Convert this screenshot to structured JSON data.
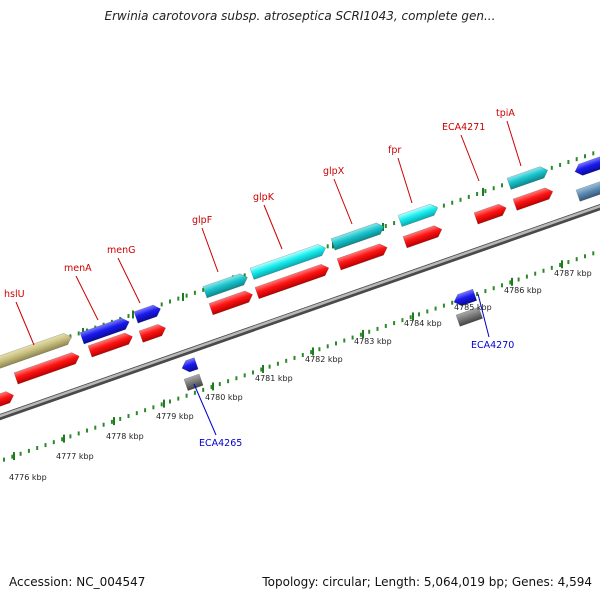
{
  "title": "Erwinia carotovora subsp. atroseptica SCRI1043, complete gen...",
  "footer": {
    "accession": "Accession: NC_004547",
    "topology": "Topology: circular; Length: 5,064,019 bp; Genes: 4,594"
  },
  "axis_ticks": [
    {
      "label": "4776 kbp"
    },
    {
      "label": "4777 kbp"
    },
    {
      "label": "4778 kbp"
    },
    {
      "label": "4779 kbp"
    },
    {
      "label": "4780 kbp"
    },
    {
      "label": "4781 kbp"
    },
    {
      "label": "4782 kbp"
    },
    {
      "label": "4783 kbp"
    },
    {
      "label": "4784 kbp"
    },
    {
      "label": "4785 kbp"
    },
    {
      "label": "4786 kbp"
    },
    {
      "label": "4787 kbp"
    }
  ],
  "gene_labels": [
    {
      "name": "hslU",
      "strand": "forward"
    },
    {
      "name": "menA",
      "strand": "forward"
    },
    {
      "name": "menG",
      "strand": "forward"
    },
    {
      "name": "glpF",
      "strand": "forward"
    },
    {
      "name": "glpK",
      "strand": "forward"
    },
    {
      "name": "glpX",
      "strand": "forward"
    },
    {
      "name": "fpr",
      "strand": "forward"
    },
    {
      "name": "ECA4271",
      "strand": "forward"
    },
    {
      "name": "tpiA",
      "strand": "forward"
    },
    {
      "name": "ECA4265",
      "strand": "reverse"
    },
    {
      "name": "ECA4270",
      "strand": "reverse"
    }
  ],
  "colors": {
    "forward_label": "#cc0000",
    "reverse_label": "#0000cc",
    "cds": "#ff1a1a",
    "blue_feature": "#1a1aee",
    "cyan_feature": "#19c4cc",
    "bright_cyan_feature": "#19eeee",
    "olive_feature": "#c8c080",
    "gray_feature": "#777777",
    "steel_feature": "#5b88b0",
    "axis_dots": "#2a8a2a",
    "backbone": "#999999"
  }
}
